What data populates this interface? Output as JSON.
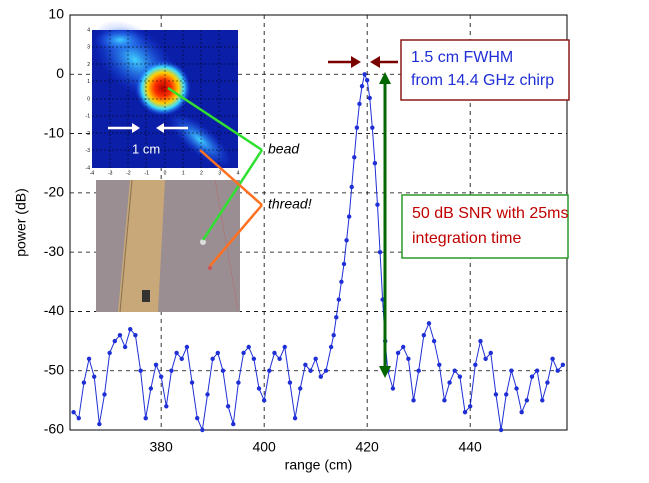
{
  "chart_data": {
    "type": "line",
    "x_label": "range (cm)",
    "y_label": "power (dB)",
    "xlim": [
      362.3,
      458.8
    ],
    "ylim": [
      -60,
      10
    ],
    "xticks": [
      380,
      400,
      420,
      440
    ],
    "yticks": [
      10,
      0,
      -10,
      -20,
      -30,
      -40,
      -50,
      -60
    ],
    "grid": true,
    "series": [
      {
        "color": "#1f2fd6",
        "x": [
          363,
          364,
          365,
          366,
          367,
          368,
          369,
          370,
          371,
          372,
          373,
          374,
          375,
          376,
          377,
          378,
          379,
          380,
          381,
          382,
          383,
          384,
          385,
          386,
          387,
          388,
          389,
          390,
          391,
          392,
          393,
          394,
          395,
          396,
          397,
          398,
          399,
          400,
          401,
          402,
          403,
          404,
          405,
          406,
          407,
          408,
          409,
          410,
          411,
          412,
          413,
          413.5,
          414,
          414.5,
          415,
          415.5,
          416,
          416.5,
          417,
          417.5,
          418,
          418.5,
          419,
          419.5,
          420,
          420.5,
          421,
          421.5,
          422,
          422.5,
          423,
          423.5,
          424,
          425,
          426,
          427,
          428,
          429,
          430,
          431,
          432,
          433,
          434,
          435,
          436,
          437,
          438,
          439,
          440,
          441,
          442,
          443,
          444,
          445,
          446,
          447,
          448,
          449,
          450,
          451,
          452,
          453,
          454,
          455,
          456,
          457,
          458
        ],
        "values": [
          -57,
          -58,
          -52,
          -48,
          -51,
          -59,
          -54,
          -47,
          -45,
          -44,
          -46,
          -43,
          -44,
          -50,
          -58,
          -53,
          -49,
          -51,
          -56,
          -50,
          -47,
          -48,
          -46,
          -52,
          -58,
          -60,
          -54,
          -48,
          -47,
          -50,
          -56,
          -59,
          -52,
          -47,
          -46,
          -48,
          -53,
          -55,
          -50,
          -47,
          -48,
          -46,
          -52,
          -58,
          -53,
          -49,
          -50,
          -48,
          -51,
          -50,
          -46,
          -44,
          -41,
          -38,
          -35,
          -32,
          -28,
          -24,
          -19,
          -14,
          -9,
          -5,
          -2,
          0,
          -1,
          -4,
          -9,
          -15,
          -22,
          -30,
          -38,
          -45,
          -50,
          -53,
          -47,
          -46,
          -48,
          -55,
          -50,
          -44,
          -42,
          -45,
          -49,
          -55,
          -52,
          -50,
          -51,
          -57,
          -56,
          -49,
          -45,
          -48,
          -47,
          -54,
          -60,
          -54,
          -50,
          -53,
          -57,
          -55,
          -51,
          -50,
          -55,
          -52,
          -48,
          -50,
          -49
        ]
      }
    ],
    "annotations": {
      "fwhm": [
        "1.5 cm FWHM",
        "from 14.4 GHz chirp"
      ],
      "snr": [
        "50 dB SNR with 25ms",
        "integration time"
      ],
      "bead": "bead",
      "thread": "thread!",
      "scale": "1 cm"
    },
    "inset": {
      "xticks": [
        "-4",
        "-3",
        "-2",
        "-1",
        "0",
        "1",
        "2",
        "3",
        "4"
      ],
      "yticks": [
        "4",
        "3",
        "2",
        "1",
        "0",
        "-1",
        "-2",
        "-3",
        "-4"
      ]
    }
  }
}
